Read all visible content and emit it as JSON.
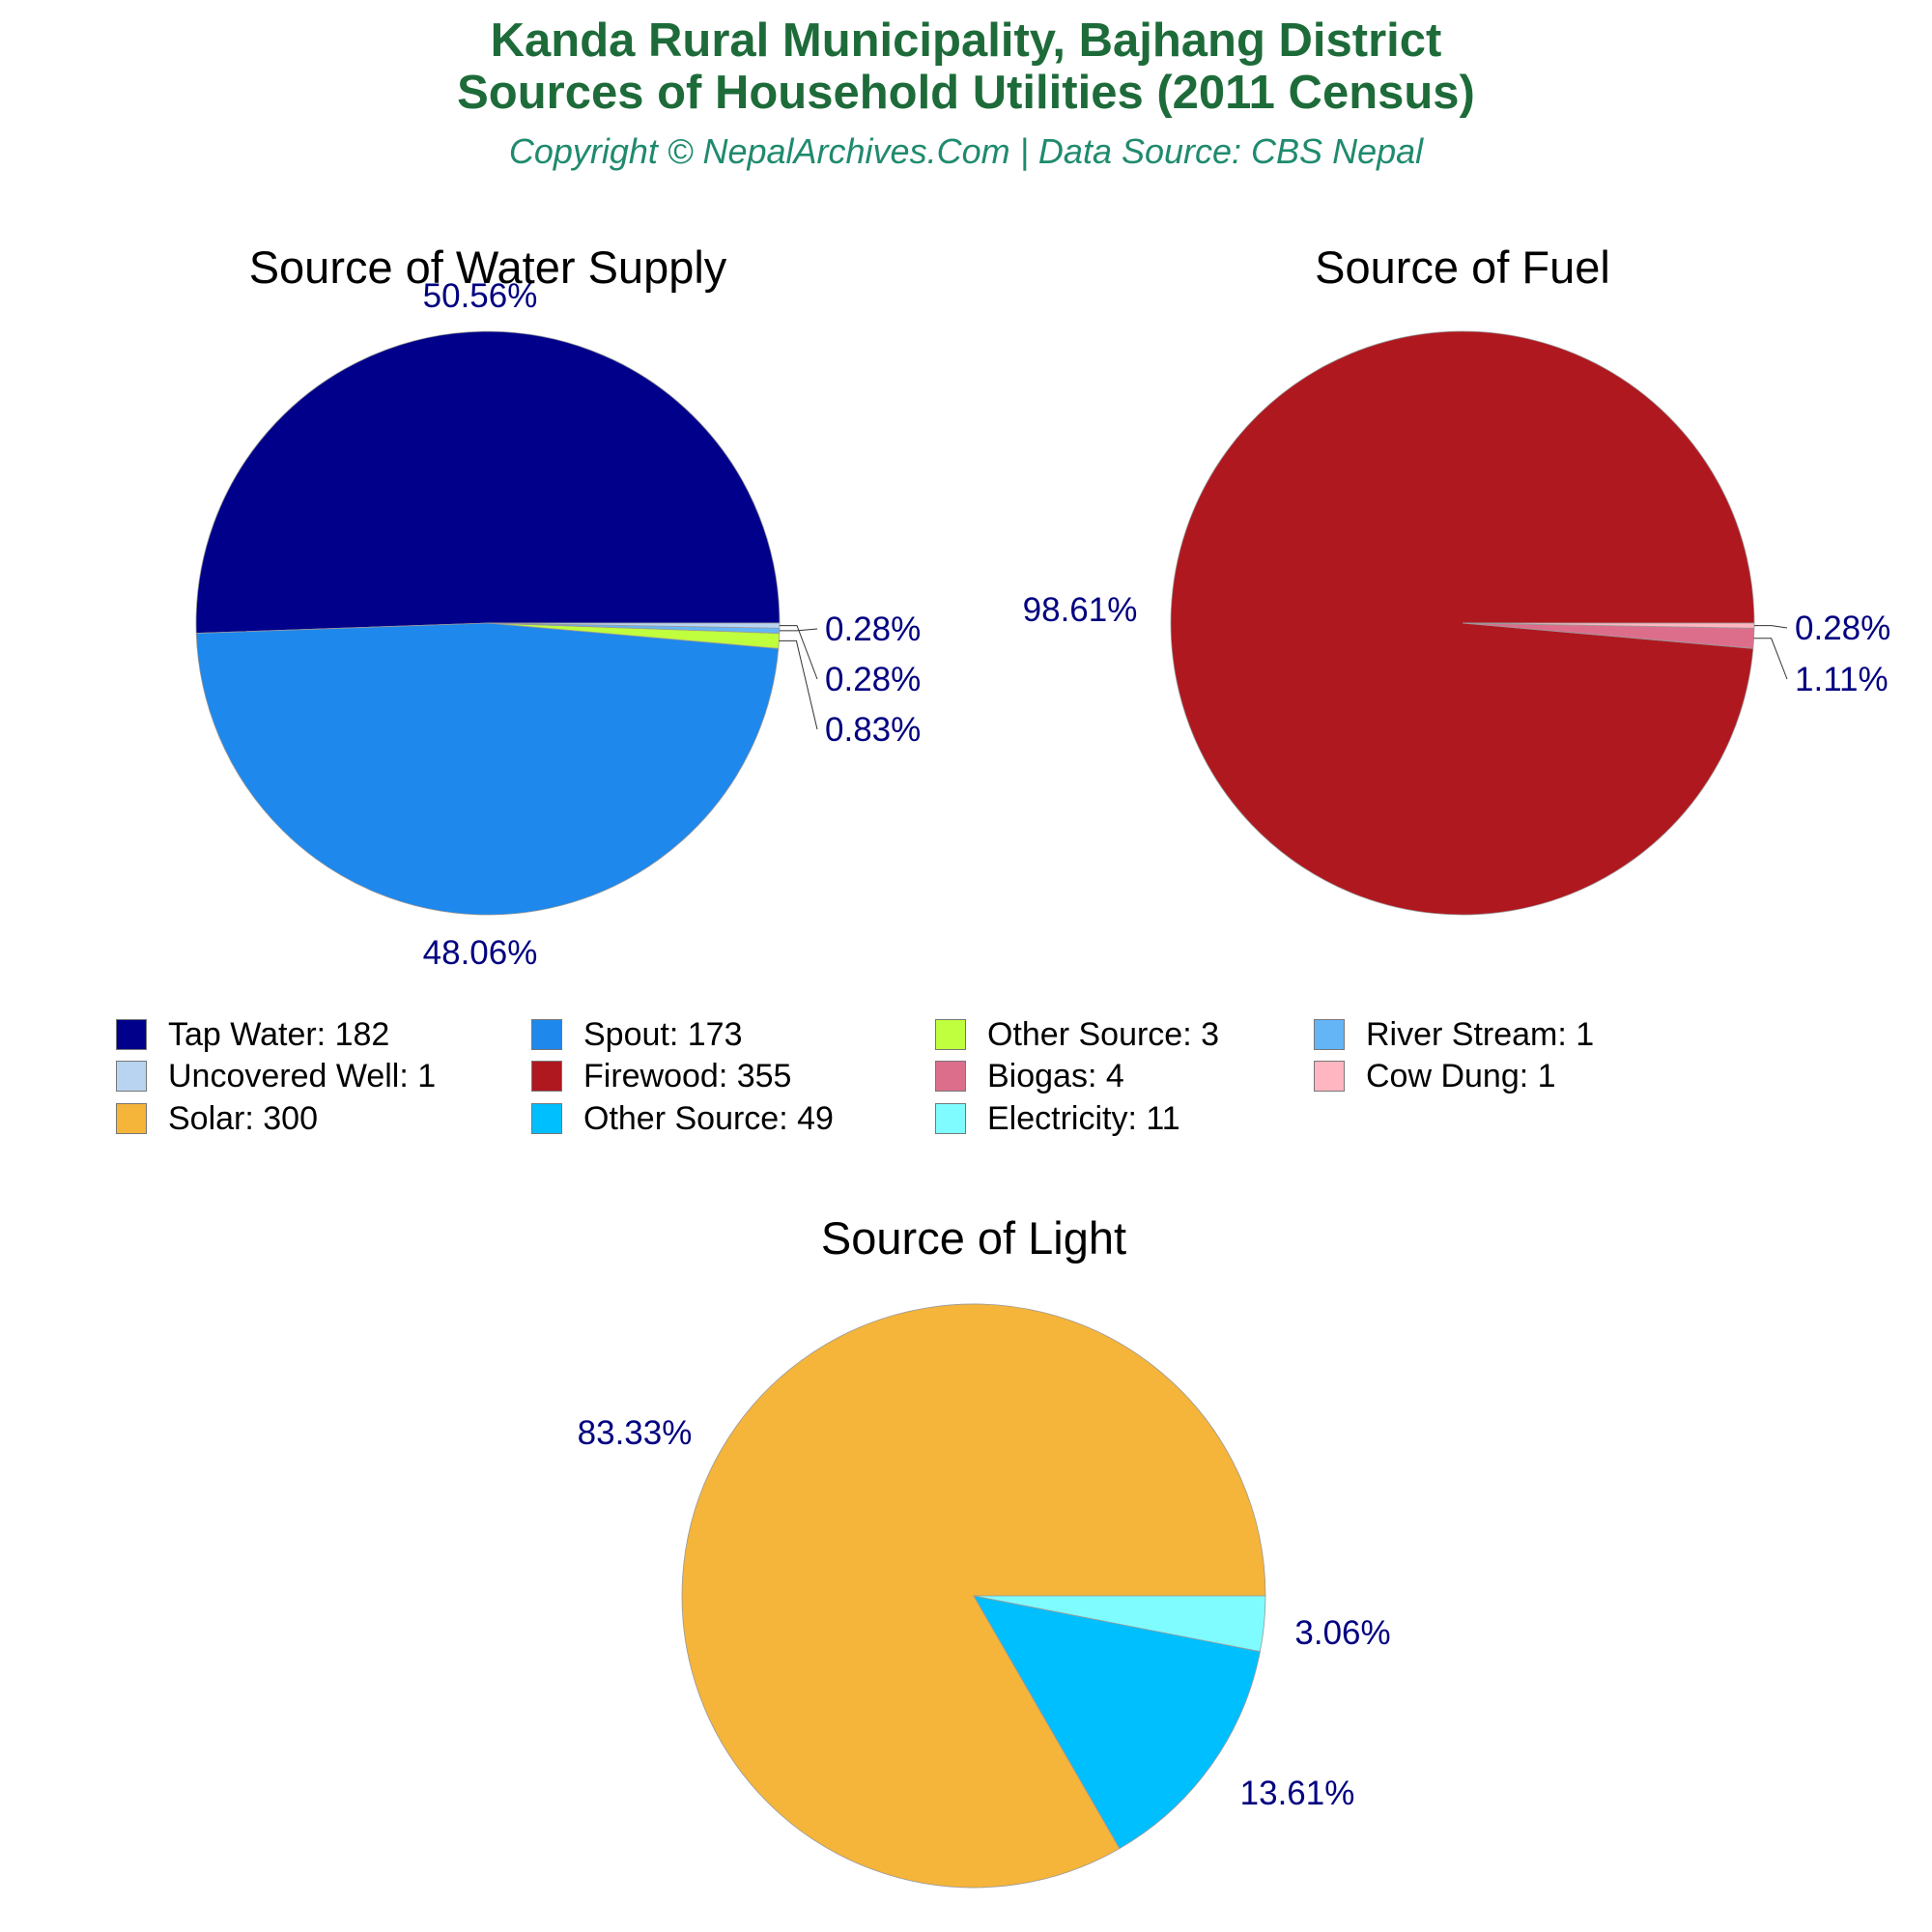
{
  "header": {
    "title_line1": "Kanda Rural Municipality, Bajhang District",
    "title_line2": "Sources of Household Utilities (2011 Census)",
    "subtitle": "Copyright © NepalArchives.Com | Data Source: CBS Nepal"
  },
  "label_color": "#000080",
  "legend": [
    {
      "label": "Tap Water: 182",
      "color": "#00008b"
    },
    {
      "label": "Spout: 173",
      "color": "#1e88ec"
    },
    {
      "label": "Other Source: 3",
      "color": "#bfff3e"
    },
    {
      "label": "River Stream: 1",
      "color": "#64b5f6"
    },
    {
      "label": "Uncovered Well: 1",
      "color": "#b8d4f0"
    },
    {
      "label": "Firewood: 355",
      "color": "#b01820"
    },
    {
      "label": "Biogas: 4",
      "color": "#dc6e8c"
    },
    {
      "label": "Cow Dung: 1",
      "color": "#ffb6c1"
    },
    {
      "label": "Solar: 300",
      "color": "#f5b43a"
    },
    {
      "label": "Other Source: 49",
      "color": "#00bfff"
    },
    {
      "label": "Electricity: 11",
      "color": "#7ffcff"
    }
  ],
  "chart_data": [
    {
      "type": "pie",
      "title": "Source of Water Supply",
      "slices": [
        {
          "name": "Tap Water",
          "value": 182,
          "label": "50.56%",
          "color": "#00008b"
        },
        {
          "name": "Spout",
          "value": 173,
          "label": "48.06%",
          "color": "#1e88ec"
        },
        {
          "name": "Other Source",
          "value": 3,
          "label": "0.83%",
          "color": "#bfff3e"
        },
        {
          "name": "River Stream",
          "value": 1,
          "label": "0.28%",
          "color": "#64b5f6"
        },
        {
          "name": "Uncovered Well",
          "value": 1,
          "label": "0.28%",
          "color": "#b8d4f0"
        }
      ]
    },
    {
      "type": "pie",
      "title": "Source of Fuel",
      "slices": [
        {
          "name": "Firewood",
          "value": 355,
          "label": "98.61%",
          "color": "#b01820"
        },
        {
          "name": "Biogas",
          "value": 4,
          "label": "1.11%",
          "color": "#dc6e8c"
        },
        {
          "name": "Cow Dung",
          "value": 1,
          "label": "0.28%",
          "color": "#ffb6c1"
        }
      ]
    },
    {
      "type": "pie",
      "title": "Source of Light",
      "slices": [
        {
          "name": "Solar",
          "value": 300,
          "label": "83.33%",
          "color": "#f5b43a"
        },
        {
          "name": "Other Source",
          "value": 49,
          "label": "13.61%",
          "color": "#00bfff"
        },
        {
          "name": "Electricity",
          "value": 11,
          "label": "3.06%",
          "color": "#7ffcff"
        }
      ]
    }
  ]
}
